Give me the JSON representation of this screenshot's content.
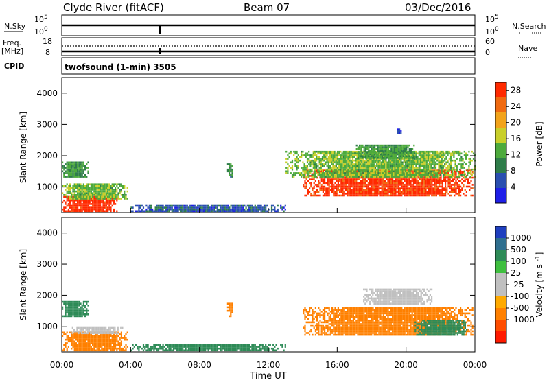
{
  "header": {
    "station": "Clyde River (fitACF)",
    "beam": "Beam 07",
    "date": "03/Dec/2016"
  },
  "strip_labels": {
    "nsky": "N.Sky",
    "nsearch": "N.Search",
    "freq": "Freq.",
    "freq_unit": "[MHz]",
    "nave": "Nave",
    "cpid": "CPID",
    "cpid_value": "twofsound (1-min) 3505",
    "nsky_ticks": [
      "10^5",
      "10^0"
    ],
    "nsearch_ticks": [
      "10^5",
      "10^0"
    ],
    "freq_ticks": [
      "18",
      "8"
    ],
    "nave_ticks": [
      "60",
      "0"
    ]
  },
  "colors": {
    "power_scale": [
      "#1f1fe8",
      "#2a4fb0",
      "#2f7d4a",
      "#4daa3c",
      "#c9cf2a",
      "#f2a31a",
      "#f06a10",
      "#ff2a00"
    ],
    "velocity_scale": [
      "#ff1a00",
      "#ff4d00",
      "#ff8000",
      "#ffaa00",
      "#c0c0c0",
      "#c0c0c0",
      "#3fbf3f",
      "#2e8b57",
      "#2f6f8f",
      "#1f3fbf"
    ]
  },
  "chart_data": [
    {
      "type": "heatmap",
      "title": "",
      "ylabel": "Slant Range [km]",
      "xlabel": "",
      "ylim": [
        180,
        4500
      ],
      "y_ticks": [
        "1000",
        "2000",
        "3000",
        "4000"
      ],
      "colorbar_label": "Power [dB]",
      "colorbar_ticks": [
        "4",
        "8",
        "12",
        "16",
        "20",
        "24",
        "28"
      ],
      "colorbar_range": [
        0,
        30
      ],
      "regions": [
        {
          "t0": 0.0,
          "t1": 3.2,
          "r0": 200,
          "r1": 700,
          "value": 29
        },
        {
          "t0": 0.0,
          "t1": 3.8,
          "r0": 600,
          "r1": 1100,
          "value": 14
        },
        {
          "t0": 0.0,
          "t1": 1.5,
          "r0": 1300,
          "r1": 1800,
          "value": 11
        },
        {
          "t0": 14.0,
          "t1": 23.9,
          "r0": 700,
          "r1": 1500,
          "value": 28
        },
        {
          "t0": 13.0,
          "t1": 24.0,
          "r0": 1300,
          "r1": 2100,
          "value": 14
        },
        {
          "t0": 17.0,
          "t1": 20.5,
          "r0": 1900,
          "r1": 2300,
          "value": 12
        },
        {
          "t0": 9.6,
          "t1": 9.9,
          "r0": 1300,
          "r1": 1750,
          "value": 10
        },
        {
          "t0": 4.0,
          "t1": 13.0,
          "r0": 200,
          "r1": 420,
          "value": 6
        },
        {
          "t0": 19.4,
          "t1": 19.7,
          "r0": 2700,
          "r1": 2850,
          "value": 5
        }
      ]
    },
    {
      "type": "heatmap",
      "title": "",
      "ylabel": "Slant Range [km]",
      "xlabel": "Time UT",
      "ylim": [
        180,
        4500
      ],
      "y_ticks": [
        "1000",
        "2000",
        "3000",
        "4000"
      ],
      "x_ticks": [
        "00:00",
        "04:00",
        "08:00",
        "12:00",
        "16:00",
        "20:00",
        "00:00"
      ],
      "xlim": [
        0,
        24
      ],
      "colorbar_label": "Velocity [m s^-1]",
      "colorbar_ticks": [
        "1000",
        "500",
        "100",
        "25",
        "-25",
        "-100",
        "-500",
        "-1000"
      ],
      "regions": [
        {
          "t0": 0.0,
          "t1": 3.8,
          "r0": 200,
          "r1": 800,
          "value": -150
        },
        {
          "t0": 0.5,
          "t1": 3.5,
          "r0": 750,
          "r1": 950,
          "value": 0
        },
        {
          "t0": 0.0,
          "t1": 1.5,
          "r0": 1300,
          "r1": 1800,
          "value": 120
        },
        {
          "t0": 14.0,
          "t1": 23.9,
          "r0": 700,
          "r1": 1600,
          "value": -300
        },
        {
          "t0": 17.5,
          "t1": 21.5,
          "r0": 1700,
          "r1": 2200,
          "value": 0
        },
        {
          "t0": 20.5,
          "t1": 23.5,
          "r0": 700,
          "r1": 1200,
          "value": 300
        },
        {
          "t0": 9.6,
          "t1": 9.9,
          "r0": 1300,
          "r1": 1750,
          "value": -150
        },
        {
          "t0": 4.0,
          "t1": 13.0,
          "r0": 200,
          "r1": 420,
          "value": 110
        }
      ]
    }
  ]
}
